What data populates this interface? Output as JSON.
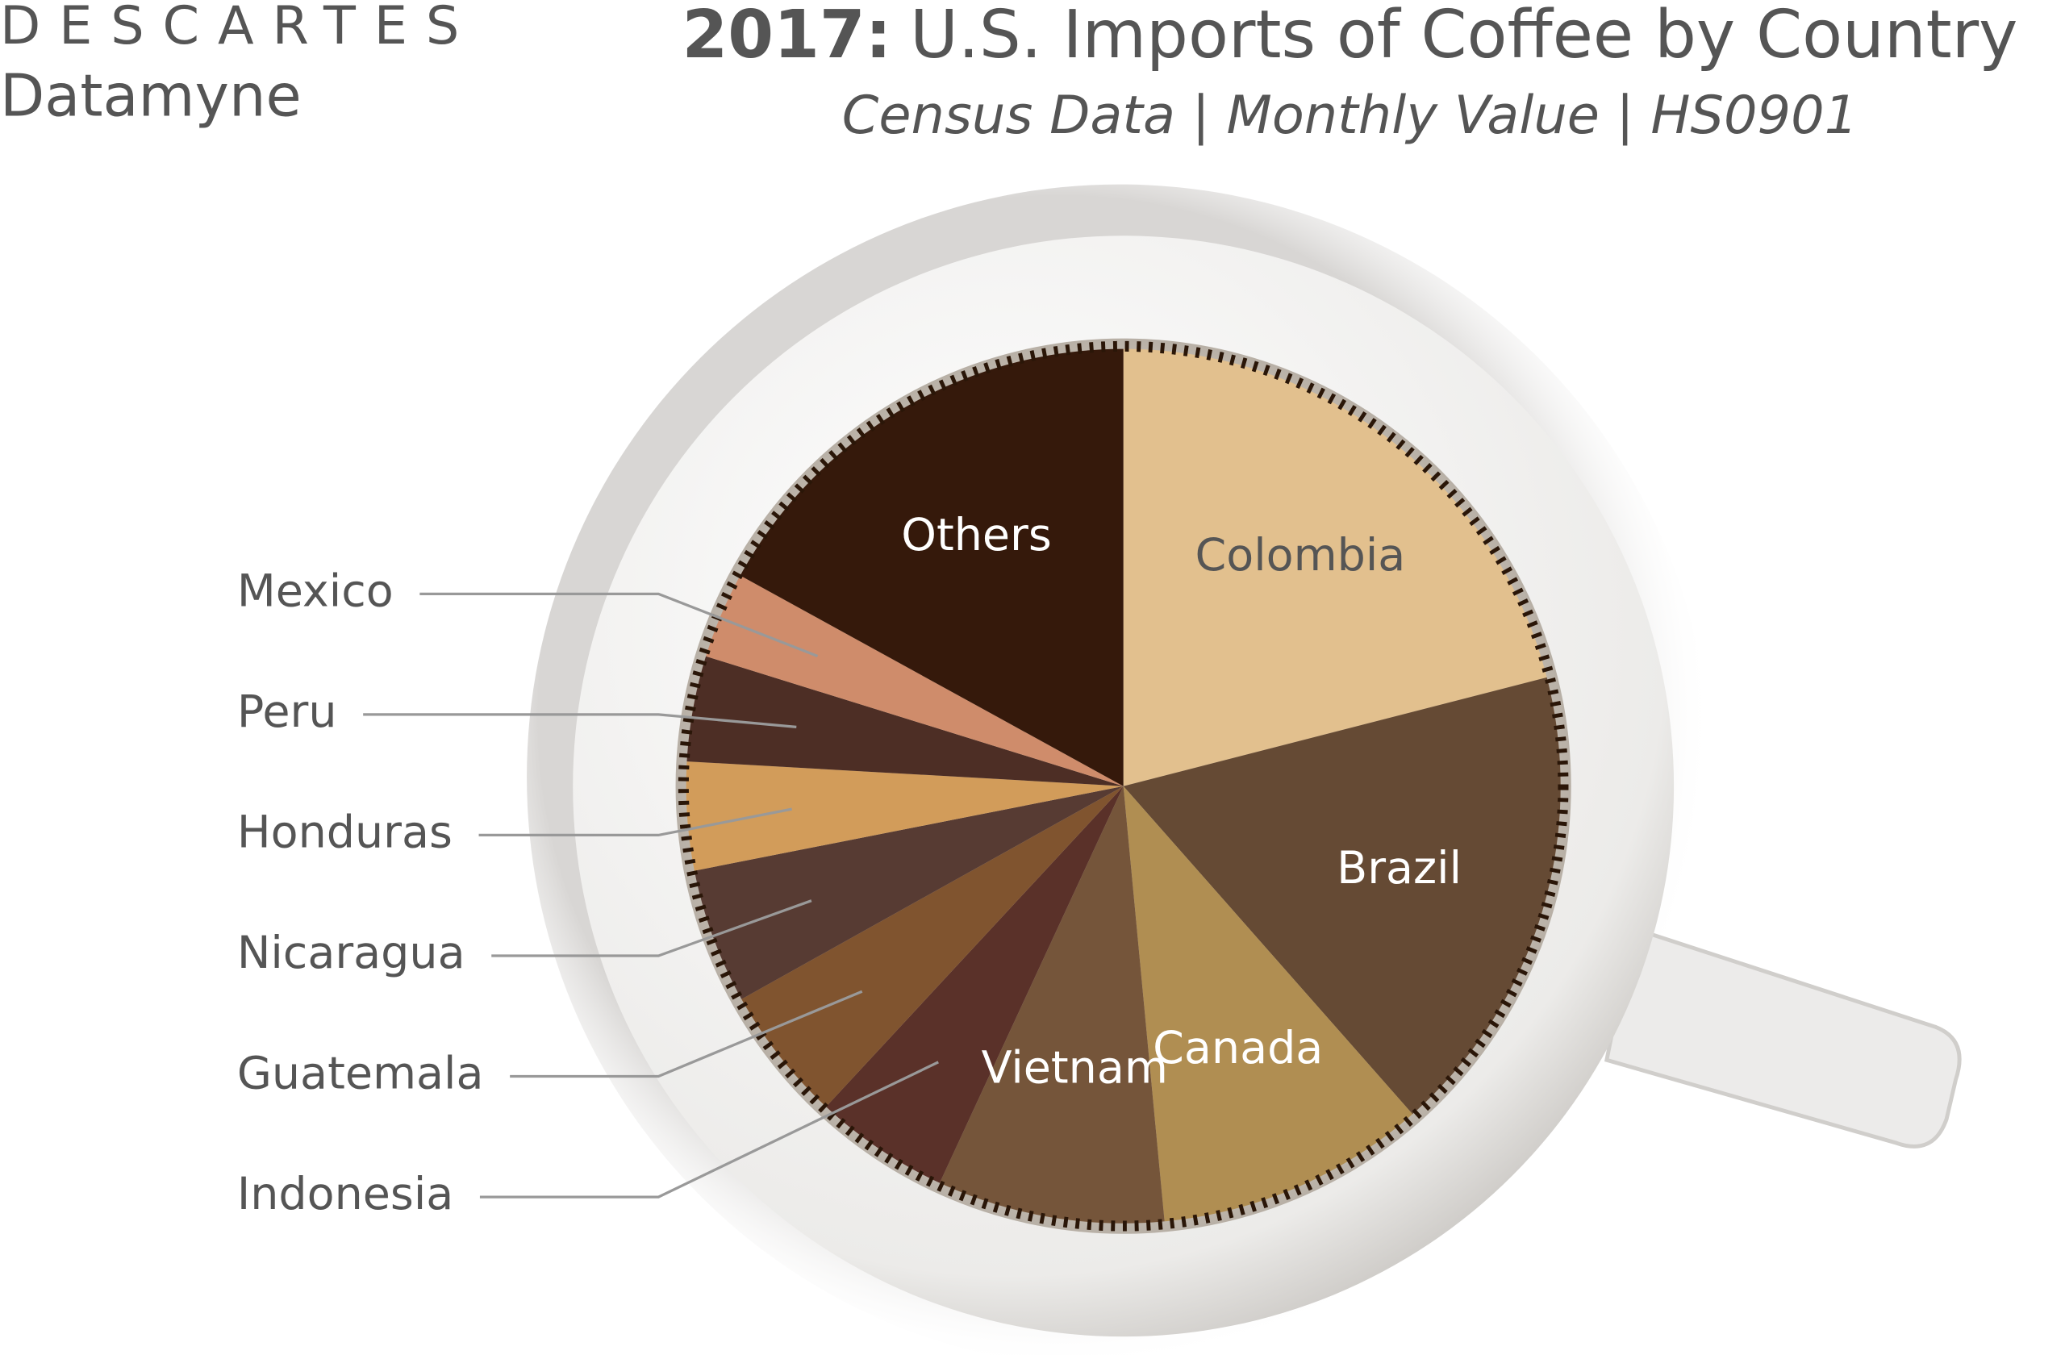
{
  "brand": {
    "name": "DESCARTES",
    "product": "Datamyne"
  },
  "chart_data": {
    "type": "pie",
    "title_year": "2017:",
    "title": "U.S. Imports of Coffee by Country",
    "subtitle": "Census Data | Monthly Value | HS0901",
    "categories": [
      "Colombia",
      "Brazil",
      "Canada",
      "Vietnam",
      "Indonesia",
      "Guatemala",
      "Nicaragua",
      "Honduras",
      "Peru",
      "Mexico",
      "Others"
    ],
    "values": [
      21,
      17.5,
      10,
      8.4,
      5,
      5,
      5,
      4,
      3.9,
      3.2,
      17
    ],
    "colors": [
      "#e2c08e",
      "#654a34",
      "#b08e52",
      "#75553a",
      "#5a3129",
      "#80542f",
      "#573b33",
      "#d29c5a",
      "#4d2e25",
      "#cf8c6b",
      "#35190b"
    ]
  }
}
